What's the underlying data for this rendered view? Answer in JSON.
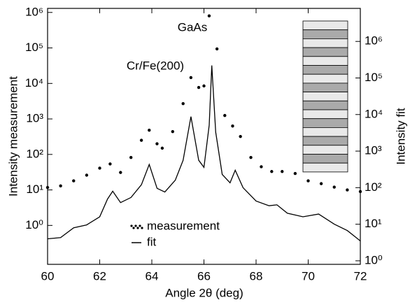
{
  "chart_data": {
    "type": "line",
    "xlabel": "Angle 2θ (deg)",
    "ylabel": "Intensity measurement",
    "y2label": "Intensity fit",
    "annotations": [
      "GaAs",
      "Cr/Fe(200)"
    ],
    "xlim": [
      60,
      72
    ],
    "xticks": [
      60,
      62,
      64,
      66,
      68,
      70,
      72
    ],
    "ylog": true,
    "ylim": [
      0.08,
      1300000
    ],
    "yticks": [
      {
        "value": 1,
        "label": "10⁰"
      },
      {
        "value": 10,
        "label": "10¹"
      },
      {
        "value": 100,
        "label": "10²"
      },
      {
        "value": 1000,
        "label": "10³"
      },
      {
        "value": 10000,
        "label": "10⁴"
      },
      {
        "value": 100000,
        "label": "10⁵"
      },
      {
        "value": 1000000,
        "label": "10⁶"
      }
    ],
    "y2log": true,
    "y2lim": [
      0.8,
      8000000
    ],
    "y2ticks": [
      {
        "value": 1,
        "label": "10⁰"
      },
      {
        "value": 10,
        "label": "10¹"
      },
      {
        "value": 100,
        "label": "10²"
      },
      {
        "value": 1000,
        "label": "10³"
      },
      {
        "value": 10000,
        "label": "10⁴"
      },
      {
        "value": 100000,
        "label": "10⁵"
      },
      {
        "value": 1000000,
        "label": "10⁶"
      }
    ],
    "legend": "bottom-center",
    "series": [
      {
        "name": "measurement",
        "color": "#000000",
        "marker": "dot",
        "x": [
          60,
          60.5,
          61,
          61.5,
          62,
          62.4,
          62.8,
          63.2,
          63.6,
          63.9,
          64.2,
          64.4,
          64.8,
          65.2,
          65.5,
          65.8,
          66.0,
          66.2,
          66.5,
          66.8,
          67.1,
          67.4,
          67.8,
          68.2,
          68.6,
          69,
          69.5,
          70,
          70.5,
          71,
          71.5,
          72
        ],
        "values": [
          11.7,
          13,
          18,
          26,
          41,
          54,
          31,
          82,
          250,
          480,
          200,
          150,
          440,
          2700,
          14600,
          7700,
          8500,
          800000,
          94000,
          1250,
          630,
          320,
          82,
          45,
          33,
          33,
          29,
          18,
          15,
          12,
          10,
          9
        ]
      },
      {
        "name": "fit",
        "color": "#000000",
        "marker": "line",
        "axis": "y2",
        "x": [
          60,
          60.5,
          61,
          61.5,
          62,
          62.3,
          62.5,
          62.8,
          63.2,
          63.6,
          63.9,
          64.2,
          64.5,
          64.9,
          65.2,
          65.5,
          65.8,
          66.0,
          66.2,
          66.3,
          66.45,
          66.7,
          67,
          67.2,
          67.5,
          68,
          68.5,
          68.8,
          69.2,
          69.8,
          70.4,
          71,
          71.5,
          72
        ],
        "values": [
          4,
          4.3,
          8,
          9.6,
          16,
          49,
          80,
          39,
          54,
          120,
          430,
          96,
          76,
          160,
          560,
          8800,
          560,
          360,
          5100,
          220000,
          3300,
          230,
          136,
          300,
          100,
          43,
          32,
          34,
          20,
          16,
          19,
          10,
          6.7,
          3.5
        ]
      }
    ]
  }
}
